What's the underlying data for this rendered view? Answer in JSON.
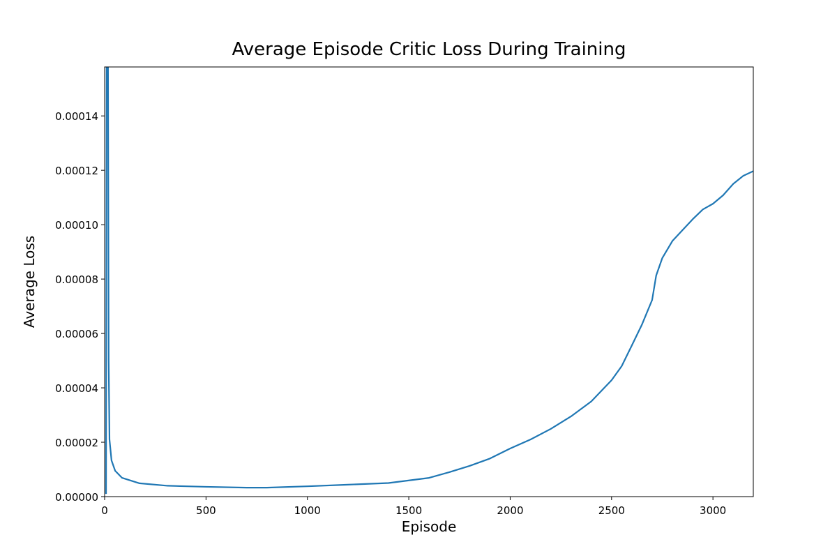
{
  "chart_data": {
    "type": "line",
    "title": "Average Episode Critic Loss During Training",
    "xlabel": "Episode",
    "ylabel": "Average Loss",
    "x": [
      7,
      12,
      17,
      20,
      24,
      34,
      52,
      86,
      172,
      310,
      500,
      700,
      800,
      1000,
      1200,
      1400,
      1600,
      1700,
      1800,
      1900,
      2000,
      2100,
      2200,
      2300,
      2400,
      2500,
      2550,
      2600,
      2650,
      2700,
      2720,
      2750,
      2800,
      2850,
      2900,
      2950,
      3000,
      3050,
      3100,
      3150,
      3199
    ],
    "series": [
      {
        "name": "Average Loss",
        "color": "#1f77b4",
        "values": [
          1e-06,
          0.0003,
          0.00015,
          5e-05,
          2.1e-05,
          1.33e-05,
          9.5e-06,
          6.9e-06,
          4.9e-06,
          4e-06,
          3.6e-06,
          3.3e-06,
          3.3e-06,
          3.8e-06,
          4.4e-06,
          5e-06,
          6.9e-06,
          9e-06,
          1.13e-05,
          1.4e-05,
          1.77e-05,
          2.1e-05,
          2.49e-05,
          2.95e-05,
          3.5e-05,
          4.28e-05,
          4.8e-05,
          5.56e-05,
          6.33e-05,
          7.23e-05,
          8.13e-05,
          8.77e-05,
          9.4e-05,
          9.8e-05,
          0.000102,
          0.0001056,
          0.0001077,
          0.0001108,
          0.000115,
          0.000118,
          0.0001197
        ]
      }
    ],
    "xlim": [
      0,
      3199
    ],
    "ylim": [
      0,
      0.000158
    ],
    "xticks": [
      0,
      500,
      1000,
      1500,
      2000,
      2500,
      3000
    ],
    "yticks": [
      {
        "value": 0,
        "label": "0.00000"
      },
      {
        "value": 2e-05,
        "label": "0.00002"
      },
      {
        "value": 4e-05,
        "label": "0.00004"
      },
      {
        "value": 6e-05,
        "label": "0.00006"
      },
      {
        "value": 8e-05,
        "label": "0.00008"
      },
      {
        "value": 0.0001,
        "label": "0.00010"
      },
      {
        "value": 0.00012,
        "label": "0.00012"
      },
      {
        "value": 0.00014,
        "label": "0.00014"
      }
    ],
    "grid": false
  }
}
